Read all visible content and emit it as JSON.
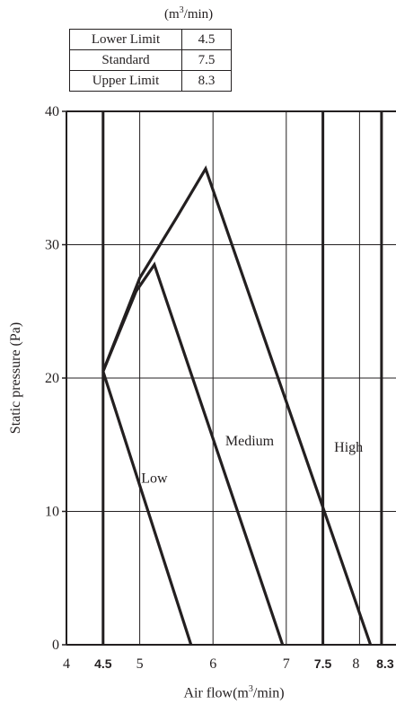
{
  "unit_label": {
    "prefix": "(m",
    "sup": "3",
    "suffix": "/min)"
  },
  "limits_table": [
    {
      "label": "Lower Limit",
      "value": "4.5"
    },
    {
      "label": "Standard",
      "value": "7.5"
    },
    {
      "label": "Upper Limit",
      "value": "8.3"
    }
  ],
  "chart_data": {
    "type": "line",
    "title": "",
    "xlabel": {
      "prefix": "Air flow(m",
      "sup": "3",
      "suffix": "/min)"
    },
    "ylabel": "Static pressure (Pa)",
    "xlim": [
      4,
      8.5
    ],
    "ylim": [
      0,
      40
    ],
    "x_ticks": [
      4,
      4.5,
      5,
      6,
      7,
      7.5,
      8,
      8.3
    ],
    "x_tick_labels": [
      "4",
      "4.5",
      "5",
      "6",
      "7",
      "7.5",
      "8",
      "8.3"
    ],
    "x_bold_ticks": [
      4.5,
      7.5,
      8.3
    ],
    "x_gridlines": [
      4.5,
      5,
      6,
      7,
      7.5,
      8,
      8.3
    ],
    "x_bold_gridlines": [
      4.5,
      7.5,
      8.3
    ],
    "y_ticks": [
      0,
      10,
      20,
      30,
      40
    ],
    "y_tick_labels": [
      "0",
      "10",
      "20",
      "30",
      "40"
    ],
    "grid": true,
    "series": [
      {
        "name": "Low",
        "x": [
          4.5,
          5.7
        ],
        "y": [
          20.5,
          0
        ]
      },
      {
        "name": "Medium",
        "x": [
          4.5,
          4.95,
          5.2,
          6.95
        ],
        "y": [
          20.5,
          26.5,
          28.5,
          0
        ]
      },
      {
        "name": "High",
        "x": [
          4.5,
          5.0,
          5.5,
          5.9,
          8.15
        ],
        "y": [
          20.5,
          27.5,
          32.0,
          35.7,
          0
        ]
      }
    ],
    "annotations": [
      {
        "text": "Low",
        "x": 5.2,
        "y": 12.5
      },
      {
        "text": "Medium",
        "x": 6.5,
        "y": 15.3
      },
      {
        "text": "High",
        "x": 7.85,
        "y": 14.8
      }
    ]
  }
}
